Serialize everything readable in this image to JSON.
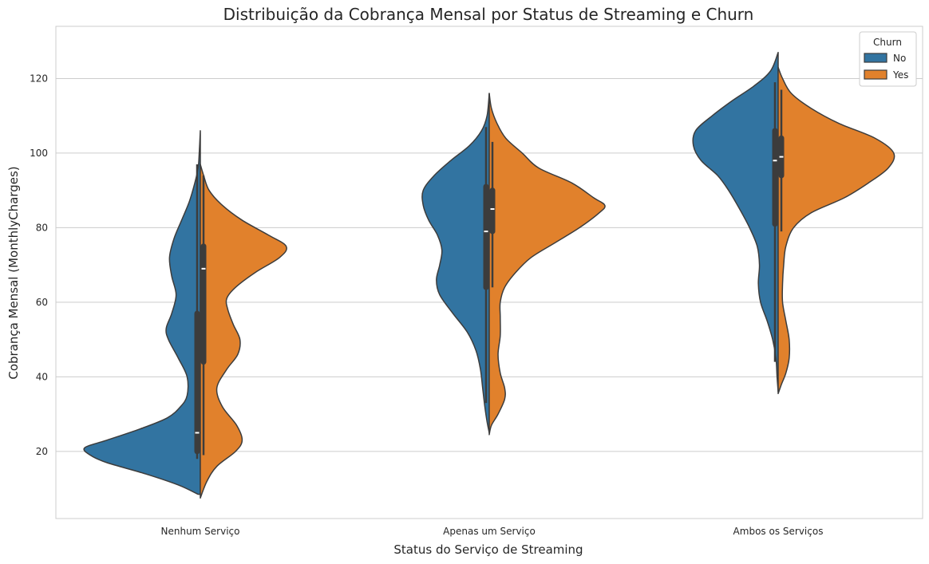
{
  "chart_data": {
    "type": "violin",
    "title": "Distribuição da Cobrança Mensal por Status de Streaming e Churn",
    "xlabel": "Status do Serviço de Streaming",
    "ylabel": "Cobrança Mensal (MonthlyCharges)",
    "ylim": [
      2,
      134
    ],
    "yticks": [
      20,
      40,
      60,
      80,
      100,
      120
    ],
    "categories": [
      "Nenhum Serviço",
      "Apenas um Serviço",
      "Ambos os Serviços"
    ],
    "grid": "horizontal",
    "legend": {
      "title": "Churn",
      "placement": "top-right"
    },
    "series": [
      {
        "name": "No",
        "color": "#3274a1",
        "groups": [
          {
            "profile": [
              [
                8.5,
                0.02
              ],
              [
                11,
                0.2
              ],
              [
                14,
                0.5
              ],
              [
                17,
                0.85
              ],
              [
                19,
                1.0
              ],
              [
                21,
                1.05
              ],
              [
                23,
                0.85
              ],
              [
                26,
                0.55
              ],
              [
                29,
                0.3
              ],
              [
                32,
                0.18
              ],
              [
                35,
                0.12
              ],
              [
                40,
                0.12
              ],
              [
                45,
                0.2
              ],
              [
                50,
                0.29
              ],
              [
                53,
                0.31
              ],
              [
                57,
                0.26
              ],
              [
                62,
                0.22
              ],
              [
                67,
                0.26
              ],
              [
                72,
                0.28
              ],
              [
                77,
                0.24
              ],
              [
                82,
                0.17
              ],
              [
                87,
                0.1
              ],
              [
                92,
                0.05
              ],
              [
                96,
                0.02
              ],
              [
                100,
                0.01
              ],
              [
                106,
                0.0
              ]
            ],
            "box": {
              "q1": 20,
              "median": 25,
              "q3": 57,
              "whisker_low": 18,
              "whisker_high": 97
            }
          },
          {
            "profile": [
              [
                25,
                0.0
              ],
              [
                28,
                0.02
              ],
              [
                32,
                0.04
              ],
              [
                37,
                0.06
              ],
              [
                42,
                0.08
              ],
              [
                47,
                0.12
              ],
              [
                52,
                0.2
              ],
              [
                57,
                0.33
              ],
              [
                62,
                0.45
              ],
              [
                66,
                0.48
              ],
              [
                70,
                0.45
              ],
              [
                74,
                0.43
              ],
              [
                78,
                0.47
              ],
              [
                82,
                0.55
              ],
              [
                86,
                0.6
              ],
              [
                90,
                0.6
              ],
              [
                94,
                0.5
              ],
              [
                98,
                0.35
              ],
              [
                102,
                0.18
              ],
              [
                106,
                0.07
              ],
              [
                110,
                0.02
              ],
              [
                116,
                0.0
              ]
            ],
            "box": {
              "q1": 64,
              "median": 79,
              "q3": 91,
              "whisker_low": 33,
              "whisker_high": 107
            }
          },
          {
            "profile": [
              [
                36,
                0.0
              ],
              [
                40,
                0.01
              ],
              [
                45,
                0.02
              ],
              [
                50,
                0.05
              ],
              [
                55,
                0.1
              ],
              [
                60,
                0.16
              ],
              [
                65,
                0.18
              ],
              [
                70,
                0.17
              ],
              [
                75,
                0.19
              ],
              [
                80,
                0.26
              ],
              [
                85,
                0.35
              ],
              [
                90,
                0.45
              ],
              [
                94,
                0.55
              ],
              [
                98,
                0.7
              ],
              [
                102,
                0.77
              ],
              [
                106,
                0.75
              ],
              [
                110,
                0.6
              ],
              [
                114,
                0.42
              ],
              [
                118,
                0.22
              ],
              [
                122,
                0.07
              ],
              [
                127,
                0.0
              ]
            ],
            "box": {
              "q1": 81,
              "median": 98,
              "q3": 106,
              "whisker_low": 44,
              "whisker_high": 119
            }
          }
        ]
      },
      {
        "name": "Yes",
        "color": "#e1812c",
        "groups": [
          {
            "profile": [
              [
                7.5,
                0.0
              ],
              [
                12,
                0.06
              ],
              [
                16,
                0.15
              ],
              [
                20,
                0.32
              ],
              [
                23,
                0.38
              ],
              [
                27,
                0.33
              ],
              [
                32,
                0.2
              ],
              [
                37,
                0.15
              ],
              [
                42,
                0.24
              ],
              [
                46,
                0.34
              ],
              [
                50,
                0.36
              ],
              [
                54,
                0.3
              ],
              [
                58,
                0.25
              ],
              [
                61,
                0.24
              ],
              [
                64,
                0.32
              ],
              [
                68,
                0.5
              ],
              [
                72,
                0.72
              ],
              [
                75,
                0.78
              ],
              [
                78,
                0.62
              ],
              [
                82,
                0.38
              ],
              [
                86,
                0.2
              ],
              [
                90,
                0.08
              ],
              [
                94,
                0.03
              ],
              [
                97,
                0.0
              ]
            ],
            "box": {
              "q1": 44,
              "median": 69,
              "q3": 75,
              "whisker_low": 19,
              "whisker_high": 94
            }
          },
          {
            "profile": [
              [
                24.5,
                0.0
              ],
              [
                27,
                0.02
              ],
              [
                30,
                0.08
              ],
              [
                34,
                0.14
              ],
              [
                37,
                0.14
              ],
              [
                41,
                0.1
              ],
              [
                46,
                0.08
              ],
              [
                51,
                0.1
              ],
              [
                56,
                0.1
              ],
              [
                60,
                0.1
              ],
              [
                64,
                0.14
              ],
              [
                68,
                0.24
              ],
              [
                72,
                0.38
              ],
              [
                76,
                0.6
              ],
              [
                80,
                0.82
              ],
              [
                84,
                1.0
              ],
              [
                86,
                1.05
              ],
              [
                88,
                0.95
              ],
              [
                92,
                0.75
              ],
              [
                96,
                0.45
              ],
              [
                100,
                0.3
              ],
              [
                104,
                0.15
              ],
              [
                108,
                0.07
              ],
              [
                112,
                0.02
              ],
              [
                116,
                0.0
              ]
            ],
            "box": {
              "q1": 79,
              "median": 85,
              "q3": 90,
              "whisker_low": 64,
              "whisker_high": 103
            }
          },
          {
            "profile": [
              [
                35.5,
                0.0
              ],
              [
                38,
                0.03
              ],
              [
                41,
                0.07
              ],
              [
                45,
                0.1
              ],
              [
                50,
                0.1
              ],
              [
                55,
                0.07
              ],
              [
                60,
                0.04
              ],
              [
                65,
                0.04
              ],
              [
                70,
                0.05
              ],
              [
                75,
                0.07
              ],
              [
                80,
                0.14
              ],
              [
                84,
                0.3
              ],
              [
                88,
                0.6
              ],
              [
                92,
                0.82
              ],
              [
                96,
                1.0
              ],
              [
                100,
                1.05
              ],
              [
                104,
                0.88
              ],
              [
                108,
                0.55
              ],
              [
                112,
                0.3
              ],
              [
                116,
                0.12
              ],
              [
                120,
                0.04
              ],
              [
                123,
                0.0
              ]
            ],
            "box": {
              "q1": 94,
              "median": 99,
              "q3": 104,
              "whisker_low": 79,
              "whisker_high": 117
            }
          }
        ]
      }
    ]
  }
}
